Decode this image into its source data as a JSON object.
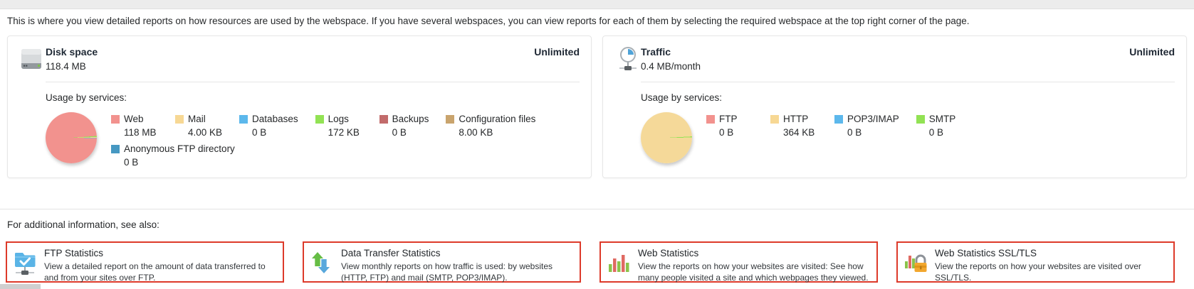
{
  "intro": "This is where you view detailed reports on how resources are used by the webspace. If you have several webspaces, you can view reports for each of them by selecting the required webspace at the top right corner of the page.",
  "cards": [
    {
      "title": "Disk space",
      "value": "118.4 MB",
      "limit": "Unlimited",
      "usage_label": "Usage by services:",
      "legend": [
        {
          "label": "Web",
          "value": "118 MB",
          "color": "#f2928e"
        },
        {
          "label": "Mail",
          "value": "4.00 KB",
          "color": "#f7d894"
        },
        {
          "label": "Databases",
          "value": "0 B",
          "color": "#5cb8ec"
        },
        {
          "label": "Logs",
          "value": "172 KB",
          "color": "#92e254"
        },
        {
          "label": "Backups",
          "value": "0 B",
          "color": "#c26b6b"
        },
        {
          "label": "Configuration files",
          "value": "8.00 KB",
          "color": "#c9a46d"
        },
        {
          "label": "Anonymous FTP directory",
          "value": "0 B",
          "color": "#4698c2"
        }
      ],
      "pie": {
        "from": 86,
        "segments": [
          [
            "#92e254",
            2.4
          ],
          [
            "#f7d894",
            1.4
          ],
          [
            "#5cb8ec",
            1.0
          ]
        ],
        "rest": "#f2928e"
      }
    },
    {
      "title": "Traffic",
      "value": "0.4 MB/month",
      "limit": "Unlimited",
      "usage_label": "Usage by services:",
      "legend": [
        {
          "label": "FTP",
          "value": "0 B",
          "color": "#f2928e"
        },
        {
          "label": "HTTP",
          "value": "364 KB",
          "color": "#f7d894"
        },
        {
          "label": "POP3/IMAP",
          "value": "0 B",
          "color": "#5cb8ec"
        },
        {
          "label": "SMTP",
          "value": "0 B",
          "color": "#92e254"
        }
      ],
      "pie": {
        "from": 87,
        "segments": [
          [
            "#92e254",
            2.4
          ]
        ],
        "rest": "#f5d999"
      }
    }
  ],
  "additional": {
    "heading": "For additional information, see also:",
    "links": [
      {
        "title": "FTP Statistics",
        "description": "View a detailed report on the amount of data transferred to and from your sites over FTP.",
        "icon": "ftp-folder-check-icon"
      },
      {
        "title": "Data Transfer Statistics",
        "description": "View monthly reports on how traffic is used: by websites (HTTP, FTP) and mail (SMTP, POP3/IMAP).",
        "icon": "up-down-arrows-icon"
      },
      {
        "title": "Web Statistics",
        "description": "View the reports on how your websites are visited: See how many people visited a site and which webpages they viewed.",
        "icon": "bar-chart-icon"
      },
      {
        "title": "Web Statistics SSL/TLS",
        "description": "View the reports on how your websites are visited over SSL/TLS.",
        "icon": "bar-chart-lock-icon"
      }
    ]
  },
  "colors": {
    "highlight_border": "#dd3a2a",
    "card_border": "#e6e6e6",
    "topbar_bg": "#ececec"
  }
}
